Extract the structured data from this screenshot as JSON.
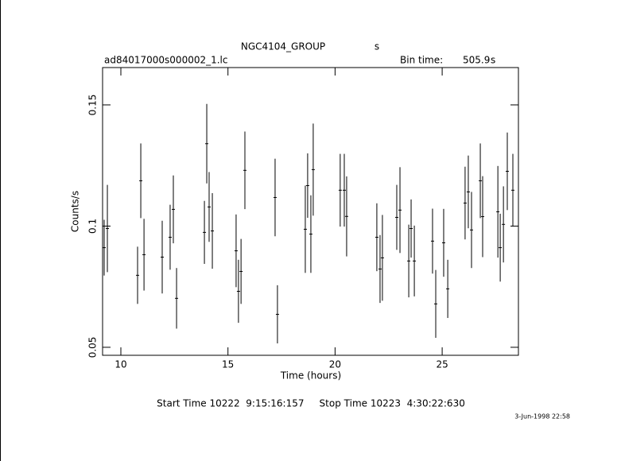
{
  "chart_data": {
    "type": "errorbar",
    "title": "NGC4104_GROUP",
    "title_unit": "s",
    "subtitle": "ad84017000s000002_1.lc",
    "bin_time_label": "Bin time:",
    "bin_time": 505.9,
    "bin_time_unit": "s",
    "xlabel": "Time (hours)",
    "ylabel": "Counts/s",
    "footer": "Start Time 10222  9:15:16:157     Stop Time 10223  4:30:22:630",
    "date": "3-Jun-1998 22:58",
    "color": "#000000",
    "xlim": [
      9.146,
      28.56
    ],
    "xticks": [
      10,
      15,
      20,
      25
    ],
    "ylim": [
      0.0467,
      0.1654
    ],
    "yticks": [
      0.05,
      0.1,
      0.15
    ],
    "x": [
      9.22,
      9.37,
      10.78,
      10.93,
      11.08,
      11.93,
      12.3,
      12.45,
      12.6,
      13.9,
      14.01,
      14.12,
      14.27,
      15.38,
      15.49,
      15.61,
      15.79,
      17.2,
      17.31,
      18.61,
      18.72,
      18.87,
      18.98,
      20.24,
      20.43,
      20.54,
      21.95,
      22.1,
      22.21,
      22.88,
      23.03,
      23.44,
      23.55,
      23.7,
      24.55,
      24.7,
      25.07,
      25.26,
      26.07,
      26.22,
      26.37,
      26.78,
      26.89,
      27.6,
      27.71,
      27.86,
      28.04,
      28.3
    ],
    "values": [
      0.0911,
      0.099,
      0.0797,
      0.1187,
      0.0882,
      0.0872,
      0.0954,
      0.1069,
      0.0702,
      0.0974,
      0.134,
      0.1079,
      0.098,
      0.0898,
      0.0731,
      0.0813,
      0.123,
      0.1118,
      0.0636,
      0.0987,
      0.1167,
      0.0967,
      0.1233,
      0.1148,
      0.1148,
      0.104,
      0.0954,
      0.0823,
      0.0869,
      0.1036,
      0.1066,
      0.0856,
      0.099,
      0.0856,
      0.0938,
      0.0679,
      0.0931,
      0.0741,
      0.1095,
      0.1141,
      0.0984,
      0.1187,
      0.1039,
      0.1059,
      0.0911,
      0.1007,
      0.1226,
      0.1148
    ],
    "errors": [
      0.0115,
      0.018,
      0.0118,
      0.0154,
      0.0148,
      0.015,
      0.0134,
      0.014,
      0.0125,
      0.013,
      0.0164,
      0.0144,
      0.0156,
      0.015,
      0.013,
      0.0134,
      0.016,
      0.016,
      0.012,
      0.018,
      0.0133,
      0.016,
      0.019,
      0.015,
      0.015,
      0.0165,
      0.014,
      0.014,
      0.0177,
      0.0134,
      0.0177,
      0.015,
      0.012,
      0.0146,
      0.0134,
      0.014,
      0.014,
      0.012,
      0.015,
      0.015,
      0.0157,
      0.0154,
      0.0167,
      0.0189,
      0.014,
      0.0157,
      0.016,
      0.015
    ]
  }
}
